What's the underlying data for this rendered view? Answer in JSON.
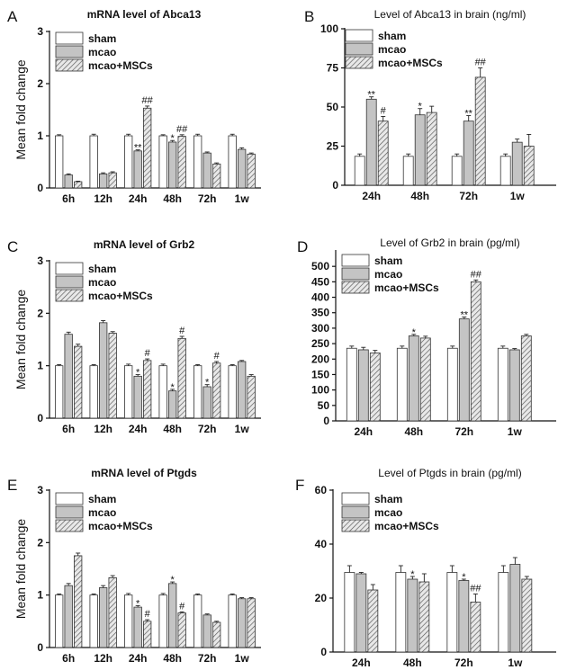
{
  "colors": {
    "sham": "#ffffff",
    "mcao": "#c4c4c4",
    "stroke": "#333333",
    "hatch_bg": "#e8e8e8",
    "hatch_line": "#555555"
  },
  "legend": [
    "sham",
    "mcao",
    "mcao+MSCs"
  ],
  "chart_data": [
    {
      "id": "A",
      "panel_label": "A",
      "type": "bar",
      "title": "mRNA level of Abca13",
      "title_bold": true,
      "ylabel": "Mean fold change",
      "ylim": [
        0,
        3
      ],
      "yticks": [
        0,
        1,
        2,
        3
      ],
      "categories": [
        "6h",
        "12h",
        "24h",
        "48h",
        "72h",
        "1w"
      ],
      "series": [
        {
          "name": "sham",
          "values": [
            1.0,
            1.0,
            1.0,
            1.0,
            1.0,
            1.0
          ],
          "errors": [
            0.02,
            0.03,
            0.03,
            0.02,
            0.03,
            0.03
          ]
        },
        {
          "name": "mcao",
          "values": [
            0.25,
            0.27,
            0.71,
            0.88,
            0.67,
            0.74
          ],
          "errors": [
            0.02,
            0.02,
            0.02,
            0.03,
            0.02,
            0.03
          ]
        },
        {
          "name": "mcao+MSCs",
          "values": [
            0.12,
            0.29,
            1.53,
            0.99,
            0.46,
            0.65
          ],
          "errors": [
            0.01,
            0.02,
            0.04,
            0.03,
            0.02,
            0.02
          ]
        }
      ],
      "annotations": [
        {
          "category": 2,
          "series": 1,
          "text": "**"
        },
        {
          "category": 2,
          "series": 2,
          "text": "##"
        },
        {
          "category": 3,
          "series": 1,
          "text": "*"
        },
        {
          "category": 3,
          "series": 2,
          "text": "##"
        }
      ]
    },
    {
      "id": "B",
      "panel_label": "B",
      "type": "bar",
      "title": "Level of Abca13 in brain (ng/ml)",
      "title_bold": false,
      "ylabel": "",
      "ylim": [
        0,
        100
      ],
      "yticks": [
        0,
        25,
        50,
        75,
        100
      ],
      "categories": [
        "24h",
        "48h",
        "72h",
        "1w"
      ],
      "series": [
        {
          "name": "sham",
          "values": [
            18.5,
            18.5,
            18.5,
            18.5
          ],
          "errors": [
            1.5,
            1.5,
            1.5,
            1.5
          ]
        },
        {
          "name": "mcao",
          "values": [
            55,
            45,
            41,
            27.5
          ],
          "errors": [
            1.5,
            4,
            3.5,
            2
          ]
        },
        {
          "name": "mcao+MSCs",
          "values": [
            41,
            46.5,
            69,
            25
          ],
          "errors": [
            3,
            4,
            6,
            7.5
          ]
        }
      ],
      "annotations": [
        {
          "category": 0,
          "series": 1,
          "text": "**"
        },
        {
          "category": 0,
          "series": 2,
          "text": "#"
        },
        {
          "category": 1,
          "series": 1,
          "text": "*"
        },
        {
          "category": 2,
          "series": 1,
          "text": "**"
        },
        {
          "category": 2,
          "series": 2,
          "text": "##"
        }
      ]
    },
    {
      "id": "C",
      "panel_label": "C",
      "type": "bar",
      "title": "mRNA level of Grb2",
      "title_bold": true,
      "ylabel": "Mean fold change",
      "ylim": [
        0,
        3
      ],
      "yticks": [
        0,
        1,
        2,
        3
      ],
      "categories": [
        "6h",
        "12h",
        "24h",
        "48h",
        "72h",
        "1w"
      ],
      "series": [
        {
          "name": "sham",
          "values": [
            1.0,
            1.0,
            1.0,
            1.0,
            1.0,
            1.0
          ],
          "errors": [
            0.02,
            0.02,
            0.03,
            0.03,
            0.02,
            0.02
          ]
        },
        {
          "name": "mcao",
          "values": [
            1.6,
            1.82,
            0.8,
            0.52,
            0.6,
            1.08
          ],
          "errors": [
            0.04,
            0.04,
            0.03,
            0.03,
            0.04,
            0.02
          ]
        },
        {
          "name": "mcao+MSCs",
          "values": [
            1.37,
            1.62,
            1.1,
            1.52,
            1.05,
            0.8
          ],
          "errors": [
            0.04,
            0.03,
            0.03,
            0.04,
            0.03,
            0.03
          ]
        }
      ],
      "annotations": [
        {
          "category": 2,
          "series": 1,
          "text": "*"
        },
        {
          "category": 2,
          "series": 2,
          "text": "#"
        },
        {
          "category": 3,
          "series": 1,
          "text": "*"
        },
        {
          "category": 3,
          "series": 2,
          "text": "#"
        },
        {
          "category": 4,
          "series": 1,
          "text": "*"
        },
        {
          "category": 4,
          "series": 2,
          "text": "#"
        }
      ]
    },
    {
      "id": "D",
      "panel_label": "D",
      "type": "bar",
      "title": "Level of Grb2 in brain (pg/ml)",
      "title_bold": false,
      "ylabel": "",
      "ylim": [
        0,
        550
      ],
      "yticks": [
        0,
        50,
        100,
        150,
        200,
        250,
        300,
        350,
        400,
        450,
        500
      ],
      "categories": [
        "24h",
        "48h",
        "72h",
        "1w"
      ],
      "series": [
        {
          "name": "sham",
          "values": [
            235,
            235,
            235,
            235
          ],
          "errors": [
            7,
            7,
            7,
            7
          ]
        },
        {
          "name": "mcao",
          "values": [
            230,
            275,
            330,
            230
          ],
          "errors": [
            8,
            5,
            6,
            4
          ]
        },
        {
          "name": "mcao+MSCs",
          "values": [
            220,
            268,
            450,
            275
          ],
          "errors": [
            8,
            6,
            6,
            5
          ]
        }
      ],
      "annotations": [
        {
          "category": 1,
          "series": 1,
          "text": "*"
        },
        {
          "category": 2,
          "series": 1,
          "text": "**"
        },
        {
          "category": 2,
          "series": 2,
          "text": "##"
        }
      ]
    },
    {
      "id": "E",
      "panel_label": "E",
      "type": "bar",
      "title": "mRNA level of Ptgds",
      "title_bold": true,
      "ylabel": "Mean fold change",
      "ylim": [
        0,
        3
      ],
      "yticks": [
        0,
        1,
        2,
        3
      ],
      "categories": [
        "6h",
        "12h",
        "24h",
        "48h",
        "72h",
        "1w"
      ],
      "series": [
        {
          "name": "sham",
          "values": [
            1.0,
            1.0,
            1.0,
            1.0,
            1.0,
            1.0
          ],
          "errors": [
            0.02,
            0.02,
            0.03,
            0.03,
            0.02,
            0.02
          ]
        },
        {
          "name": "mcao",
          "values": [
            1.18,
            1.14,
            0.77,
            1.22,
            0.62,
            0.93
          ],
          "errors": [
            0.04,
            0.04,
            0.03,
            0.03,
            0.02,
            0.02
          ]
        },
        {
          "name": "mcao+MSCs",
          "values": [
            1.75,
            1.33,
            0.5,
            0.66,
            0.48,
            0.93
          ],
          "errors": [
            0.05,
            0.04,
            0.03,
            0.02,
            0.02,
            0.02
          ]
        }
      ],
      "annotations": [
        {
          "category": 2,
          "series": 1,
          "text": "*"
        },
        {
          "category": 2,
          "series": 2,
          "text": "#"
        },
        {
          "category": 3,
          "series": 1,
          "text": "*"
        },
        {
          "category": 3,
          "series": 2,
          "text": "#"
        }
      ]
    },
    {
      "id": "F",
      "panel_label": "F",
      "type": "bar",
      "title": "Level of Ptgds in brain (pg/ml)",
      "title_bold": false,
      "ylabel": "",
      "ylim": [
        0,
        60
      ],
      "yticks": [
        0,
        20,
        40,
        60
      ],
      "categories": [
        "24h",
        "48h",
        "72h",
        "1w"
      ],
      "series": [
        {
          "name": "sham",
          "values": [
            29.5,
            29.5,
            29.5,
            29.5
          ],
          "errors": [
            2.5,
            2.5,
            2.5,
            2.5
          ]
        },
        {
          "name": "mcao",
          "values": [
            29,
            27,
            26.5,
            32.5
          ],
          "errors": [
            0.5,
            1,
            0.5,
            2.5
          ]
        },
        {
          "name": "mcao+MSCs",
          "values": [
            23,
            26,
            18.5,
            27
          ],
          "errors": [
            2,
            3,
            3,
            1
          ]
        }
      ],
      "annotations": [
        {
          "category": 1,
          "series": 1,
          "text": "*"
        },
        {
          "category": 2,
          "series": 1,
          "text": "*"
        },
        {
          "category": 2,
          "series": 2,
          "text": "##"
        }
      ]
    }
  ]
}
